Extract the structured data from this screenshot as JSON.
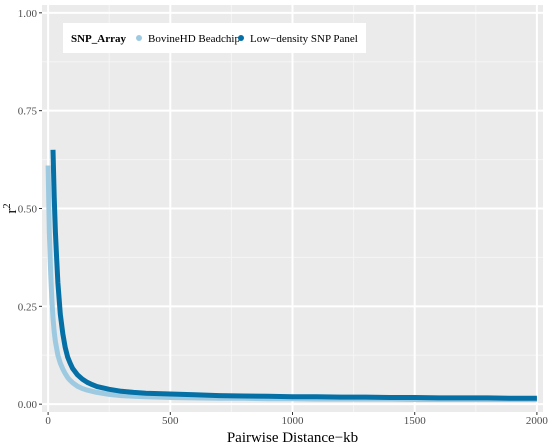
{
  "chart_data": {
    "type": "line",
    "title": "",
    "xlabel": "Pairwise Distance−kb",
    "ylabel_base": "r",
    "ylabel_sup": "2",
    "xlim": [
      -25,
      2025
    ],
    "ylim": [
      -0.02,
      1.02
    ],
    "x_ticks": [
      0,
      500,
      1000,
      1500,
      2000
    ],
    "x_tick_labels": [
      "0",
      "500",
      "1000",
      "1500",
      "2000"
    ],
    "y_ticks": [
      0.0,
      0.25,
      0.5,
      0.75,
      1.0
    ],
    "y_tick_labels": [
      "0.00",
      "0.25",
      "0.50",
      "0.75",
      "1.00"
    ],
    "grid": true,
    "legend": {
      "placement": "top-left",
      "title": "SNP_Array",
      "entries": [
        "BovineHD Beadchip",
        "Low−density SNP Panel"
      ]
    },
    "series": [
      {
        "name": "BovineHD Beadchip",
        "color": "#9ecae1",
        "x": [
          0,
          5,
          10,
          15,
          20,
          25,
          30,
          40,
          50,
          60,
          70,
          80,
          90,
          100,
          120,
          140,
          160,
          180,
          200,
          250,
          300,
          350,
          400,
          450,
          500,
          600,
          700,
          800,
          900,
          1000,
          1100,
          1200,
          1300,
          1400,
          1500,
          1600,
          1700,
          1800,
          1900,
          2000
        ],
        "y": [
          0.61,
          0.44,
          0.34,
          0.27,
          0.22,
          0.185,
          0.16,
          0.125,
          0.105,
          0.09,
          0.078,
          0.068,
          0.061,
          0.055,
          0.046,
          0.04,
          0.036,
          0.033,
          0.03,
          0.025,
          0.022,
          0.02,
          0.019,
          0.018,
          0.017,
          0.016,
          0.015,
          0.015,
          0.014,
          0.014,
          0.013,
          0.013,
          0.013,
          0.013,
          0.012,
          0.012,
          0.012,
          0.012,
          0.012,
          0.012
        ]
      },
      {
        "name": "Low−density SNP Panel",
        "color": "#0570a6",
        "x": [
          20,
          25,
          30,
          35,
          40,
          45,
          50,
          60,
          70,
          80,
          90,
          100,
          120,
          140,
          160,
          180,
          200,
          250,
          300,
          350,
          400,
          450,
          500,
          550,
          600,
          700,
          800,
          900,
          1000,
          1100,
          1200,
          1300,
          1400,
          1500,
          1600,
          1700,
          1800,
          1900,
          2000
        ],
        "y": [
          0.65,
          0.53,
          0.44,
          0.37,
          0.31,
          0.27,
          0.23,
          0.18,
          0.145,
          0.12,
          0.105,
          0.092,
          0.075,
          0.064,
          0.056,
          0.05,
          0.045,
          0.038,
          0.033,
          0.03,
          0.028,
          0.027,
          0.026,
          0.025,
          0.024,
          0.022,
          0.021,
          0.02,
          0.019,
          0.019,
          0.018,
          0.018,
          0.017,
          0.017,
          0.016,
          0.016,
          0.016,
          0.015,
          0.015
        ]
      }
    ]
  }
}
